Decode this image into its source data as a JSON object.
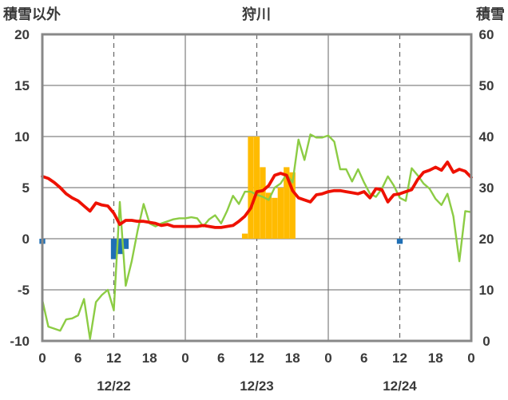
{
  "header": {
    "left_axis_title": "積雪以外",
    "station_name": "狩川",
    "right_axis_title": "積雪"
  },
  "colors": {
    "temperature": "#ee1100",
    "precipitation_bar": "#ffbb00",
    "negative_bar": "#1f6fb5",
    "green_series": "#8ccc44",
    "snow_depth": "#7030a0",
    "frame": "#888888",
    "grid": "#666666"
  },
  "chart_data": {
    "type": "line",
    "left_axis": {
      "ylim": [
        -10,
        20
      ],
      "ticks": [
        "20",
        "15",
        "10",
        "5",
        "0",
        "-5",
        "-10"
      ]
    },
    "right_axis": {
      "ylim": [
        0,
        60
      ],
      "ticks": [
        "60",
        "50",
        "40",
        "30",
        "20",
        "10",
        "0"
      ]
    },
    "x_hour_ticks": [
      "0",
      "6",
      "12",
      "18",
      "0",
      "6",
      "12",
      "18",
      "0",
      "6",
      "12",
      "18",
      "0"
    ],
    "x_date_labels": [
      {
        "label": "12/22",
        "hour": 12
      },
      {
        "label": "12/23",
        "hour": 36
      },
      {
        "label": "12/24",
        "hour": 60
      }
    ],
    "xlim": [
      0,
      72
    ],
    "grid": "dashed at 12h, solid at 0h",
    "series": [
      {
        "kind": "line",
        "axis": "left",
        "values": [
          [
            0,
            6.1
          ],
          [
            1,
            5.9
          ],
          [
            2,
            5.5
          ],
          [
            3,
            5.0
          ],
          [
            4,
            4.4
          ],
          [
            5,
            4.0
          ],
          [
            6,
            3.7
          ],
          [
            7,
            3.2
          ],
          [
            8,
            2.7
          ],
          [
            9,
            3.5
          ],
          [
            10,
            3.3
          ],
          [
            11,
            3.2
          ],
          [
            12,
            2.5
          ],
          [
            13,
            1.4
          ],
          [
            14,
            1.8
          ],
          [
            15,
            1.8
          ],
          [
            16,
            1.7
          ],
          [
            17,
            1.7
          ],
          [
            18,
            1.6
          ],
          [
            19,
            1.5
          ],
          [
            20,
            1.3
          ],
          [
            21,
            1.4
          ],
          [
            22,
            1.2
          ],
          [
            23,
            1.2
          ],
          [
            24,
            1.2
          ],
          [
            25,
            1.2
          ],
          [
            26,
            1.2
          ],
          [
            27,
            1.3
          ],
          [
            28,
            1.2
          ],
          [
            29,
            1.1
          ],
          [
            30,
            1.1
          ],
          [
            31,
            1.2
          ],
          [
            32,
            1.3
          ],
          [
            33,
            1.7
          ],
          [
            34,
            2.2
          ],
          [
            35,
            3.0
          ],
          [
            36,
            4.6
          ],
          [
            37,
            4.7
          ],
          [
            38,
            5.2
          ],
          [
            39,
            6.2
          ],
          [
            40,
            6.4
          ],
          [
            41,
            6.2
          ],
          [
            42,
            4.7
          ],
          [
            43,
            4.0
          ],
          [
            44,
            3.8
          ],
          [
            45,
            3.6
          ],
          [
            46,
            4.3
          ],
          [
            47,
            4.4
          ],
          [
            48,
            4.6
          ],
          [
            49,
            4.7
          ],
          [
            50,
            4.7
          ],
          [
            51,
            4.6
          ],
          [
            52,
            4.5
          ],
          [
            53,
            4.4
          ],
          [
            54,
            4.6
          ],
          [
            55,
            4.0
          ],
          [
            56,
            4.9
          ],
          [
            57,
            4.8
          ],
          [
            58,
            3.6
          ],
          [
            59,
            4.3
          ],
          [
            60,
            4.4
          ],
          [
            61,
            4.6
          ],
          [
            62,
            4.8
          ],
          [
            63,
            5.8
          ],
          [
            64,
            6.5
          ],
          [
            65,
            6.7
          ],
          [
            66,
            7.0
          ],
          [
            67,
            6.7
          ],
          [
            68,
            7.5
          ],
          [
            69,
            6.5
          ],
          [
            70,
            6.8
          ],
          [
            71,
            6.6
          ],
          [
            72,
            6.0
          ]
        ]
      },
      {
        "kind": "line",
        "axis": "left",
        "values": [
          [
            0,
            -6.0
          ],
          [
            1,
            -8.6
          ],
          [
            2,
            -8.8
          ],
          [
            3,
            -9.0
          ],
          [
            4,
            -7.9
          ],
          [
            5,
            -7.8
          ],
          [
            6,
            -7.5
          ],
          [
            7,
            -5.9
          ],
          [
            8,
            -9.8
          ],
          [
            9,
            -6.2
          ],
          [
            10,
            -5.5
          ],
          [
            11,
            -5.0
          ],
          [
            12,
            -7.0
          ],
          [
            13,
            3.6
          ],
          [
            14,
            -4.6
          ],
          [
            15,
            -2.2
          ],
          [
            16,
            0.8
          ],
          [
            17,
            3.4
          ],
          [
            18,
            1.5
          ],
          [
            19,
            1.2
          ],
          [
            20,
            1.5
          ],
          [
            21,
            1.7
          ],
          [
            22,
            1.9
          ],
          [
            23,
            2.0
          ],
          [
            24,
            2.0
          ],
          [
            25,
            2.1
          ],
          [
            26,
            2.0
          ],
          [
            27,
            1.2
          ],
          [
            28,
            1.9
          ],
          [
            29,
            2.3
          ],
          [
            30,
            1.5
          ],
          [
            31,
            2.7
          ],
          [
            32,
            4.2
          ],
          [
            33,
            3.4
          ],
          [
            34,
            4.6
          ],
          [
            35,
            4.6
          ],
          [
            36,
            4.3
          ],
          [
            37,
            4.1
          ],
          [
            38,
            3.8
          ],
          [
            39,
            5.0
          ],
          [
            40,
            5.4
          ],
          [
            41,
            6.3
          ],
          [
            42,
            5.5
          ],
          [
            43,
            9.7
          ],
          [
            44,
            7.7
          ],
          [
            45,
            10.2
          ],
          [
            46,
            9.9
          ],
          [
            47,
            9.9
          ],
          [
            48,
            10.1
          ],
          [
            49,
            9.5
          ],
          [
            50,
            6.8
          ],
          [
            51,
            6.8
          ],
          [
            52,
            5.6
          ],
          [
            53,
            6.8
          ],
          [
            54,
            5.5
          ],
          [
            55,
            4.4
          ],
          [
            56,
            4.1
          ],
          [
            57,
            4.9
          ],
          [
            58,
            6.1
          ],
          [
            59,
            5.2
          ],
          [
            60,
            4.0
          ],
          [
            61,
            3.7
          ],
          [
            62,
            6.9
          ],
          [
            63,
            6.2
          ],
          [
            64,
            5.4
          ],
          [
            65,
            4.9
          ],
          [
            66,
            3.9
          ],
          [
            67,
            3.3
          ],
          [
            68,
            4.4
          ],
          [
            69,
            2.2
          ],
          [
            70,
            -2.2
          ],
          [
            71,
            2.7
          ],
          [
            72,
            2.6
          ]
        ]
      },
      {
        "kind": "bar",
        "axis": "left",
        "values": [
          [
            34,
            0.5
          ],
          [
            35,
            10.0
          ],
          [
            36,
            10.0
          ],
          [
            37,
            7.0
          ],
          [
            38,
            4.5
          ],
          [
            39,
            4.0
          ],
          [
            40,
            5.0
          ],
          [
            41,
            7.0
          ],
          [
            42,
            6.5
          ]
        ]
      },
      {
        "kind": "bar",
        "axis": "left",
        "values": [
          [
            0,
            -0.5
          ],
          [
            12,
            -2.0
          ],
          [
            13,
            -1.5
          ],
          [
            14,
            -1.0
          ],
          [
            60,
            -0.5
          ]
        ]
      },
      {
        "kind": "line",
        "axis": "right",
        "values": [
          [
            0,
            0
          ],
          [
            72,
            0
          ]
        ]
      }
    ]
  }
}
